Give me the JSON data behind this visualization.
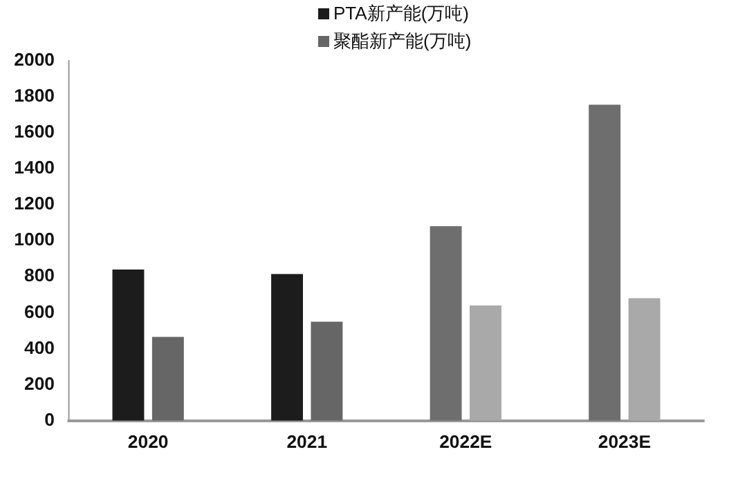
{
  "chart_data": {
    "type": "bar",
    "categories": [
      "2020",
      "2021",
      "2022E",
      "2023E"
    ],
    "series": [
      {
        "name": "PTA新产能(万吨)",
        "color": "#1c1c1c",
        "colors": [
          "#1c1c1c",
          "#1c1c1c",
          "#6e6e6e",
          "#6e6e6e"
        ],
        "values": [
          840,
          815,
          1080,
          1755
        ]
      },
      {
        "name": "聚酯新产能(万吨)",
        "color": "#666666",
        "colors": [
          "#666666",
          "#666666",
          "#a9a9a9",
          "#a9a9a9"
        ],
        "values": [
          465,
          550,
          640,
          680
        ]
      }
    ],
    "ylim": [
      0,
      2000
    ],
    "yticks": [
      0,
      200,
      400,
      600,
      800,
      1000,
      1200,
      1400,
      1600,
      1800,
      2000
    ],
    "grid": false,
    "legend": "top left"
  }
}
